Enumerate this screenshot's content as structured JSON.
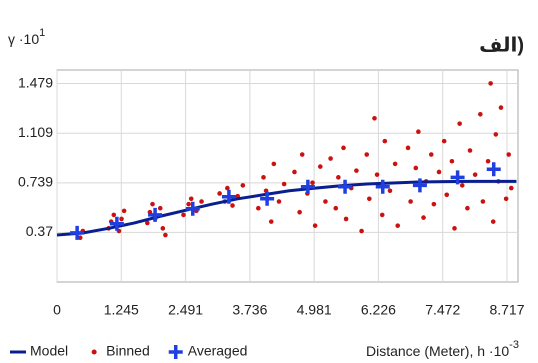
{
  "chart_data": {
    "type": "scatter",
    "title": "الف)",
    "y_label": "γ ·10",
    "y_label_exp": "1",
    "x_label": "Distance (Meter), h ·10",
    "x_label_exp": "-3",
    "xlim": [
      0,
      8.93
    ],
    "ylim": [
      0,
      1.58
    ],
    "xticks": [
      0,
      1.245,
      2.491,
      3.736,
      4.981,
      6.226,
      7.472,
      8.717
    ],
    "yticks": [
      0.37,
      0.739,
      1.109,
      1.479
    ],
    "grid": true,
    "legend": "bottom",
    "series": [
      {
        "name": "Model",
        "color": "#0a1f8f",
        "marker": "line",
        "x": [
          0,
          0.5,
          1,
          1.5,
          2,
          2.5,
          3,
          3.5,
          4,
          4.5,
          5,
          5.5,
          6,
          6.5,
          7,
          7.5,
          8,
          8.5,
          8.9
        ],
        "values": [
          0.35,
          0.365,
          0.4,
          0.44,
          0.49,
          0.535,
          0.58,
          0.62,
          0.65,
          0.68,
          0.7,
          0.717,
          0.73,
          0.738,
          0.745,
          0.748,
          0.75,
          0.75,
          0.75
        ]
      },
      {
        "name": "Binned",
        "color": "#cc1111",
        "marker": "dot",
        "x": [
          0.45,
          0.5,
          1.0,
          1.05,
          1.1,
          1.15,
          1.2,
          1.25,
          1.3,
          1.75,
          1.8,
          1.85,
          1.9,
          2.0,
          2.05,
          2.1,
          2.45,
          2.55,
          2.6,
          2.7,
          2.8,
          3.15,
          3.25,
          3.3,
          3.4,
          3.5,
          3.6,
          3.9,
          4.0,
          4.05,
          4.15,
          4.2,
          4.3,
          4.4,
          4.6,
          4.7,
          4.75,
          4.85,
          4.95,
          5.0,
          5.1,
          5.2,
          5.3,
          5.4,
          5.45,
          5.55,
          5.6,
          5.7,
          5.8,
          5.9,
          6.0,
          6.05,
          6.15,
          6.2,
          6.3,
          6.35,
          6.45,
          6.55,
          6.6,
          6.8,
          6.85,
          6.95,
          7.0,
          7.1,
          7.15,
          7.25,
          7.3,
          7.4,
          7.5,
          7.55,
          7.65,
          7.7,
          7.8,
          7.85,
          7.95,
          8.0,
          8.1,
          8.2,
          8.25,
          8.35,
          8.4,
          8.45,
          8.5,
          8.55,
          8.6,
          8.7,
          8.75,
          8.8
        ],
        "values": [
          0.33,
          0.38,
          0.4,
          0.45,
          0.5,
          0.42,
          0.38,
          0.47,
          0.53,
          0.44,
          0.52,
          0.58,
          0.47,
          0.55,
          0.4,
          0.35,
          0.5,
          0.58,
          0.62,
          0.53,
          0.6,
          0.66,
          0.6,
          0.7,
          0.57,
          0.64,
          0.72,
          0.55,
          0.78,
          0.68,
          0.45,
          0.88,
          0.6,
          0.73,
          0.82,
          0.52,
          0.95,
          0.66,
          0.74,
          0.42,
          0.86,
          0.6,
          0.92,
          0.55,
          0.78,
          1.0,
          0.47,
          0.7,
          0.83,
          0.38,
          0.95,
          0.62,
          1.22,
          0.8,
          0.5,
          1.05,
          0.68,
          0.88,
          0.42,
          1.0,
          0.6,
          0.85,
          1.12,
          0.48,
          0.75,
          0.95,
          0.58,
          0.82,
          1.05,
          0.65,
          0.9,
          0.4,
          1.18,
          0.72,
          0.55,
          0.98,
          0.8,
          1.25,
          0.6,
          0.9,
          1.48,
          0.45,
          1.1,
          0.75,
          1.3,
          0.62,
          0.95,
          0.7
        ]
      },
      {
        "name": "Averaged",
        "color": "#1f3fe0",
        "marker": "cross",
        "x": [
          0.39,
          1.16,
          1.9,
          2.63,
          3.33,
          4.07,
          4.86,
          5.58,
          6.31,
          7.03,
          7.76,
          8.46
        ],
        "values": [
          0.366,
          0.434,
          0.5,
          0.546,
          0.635,
          0.62,
          0.71,
          0.71,
          0.71,
          0.72,
          0.78,
          0.84
        ]
      }
    ]
  }
}
